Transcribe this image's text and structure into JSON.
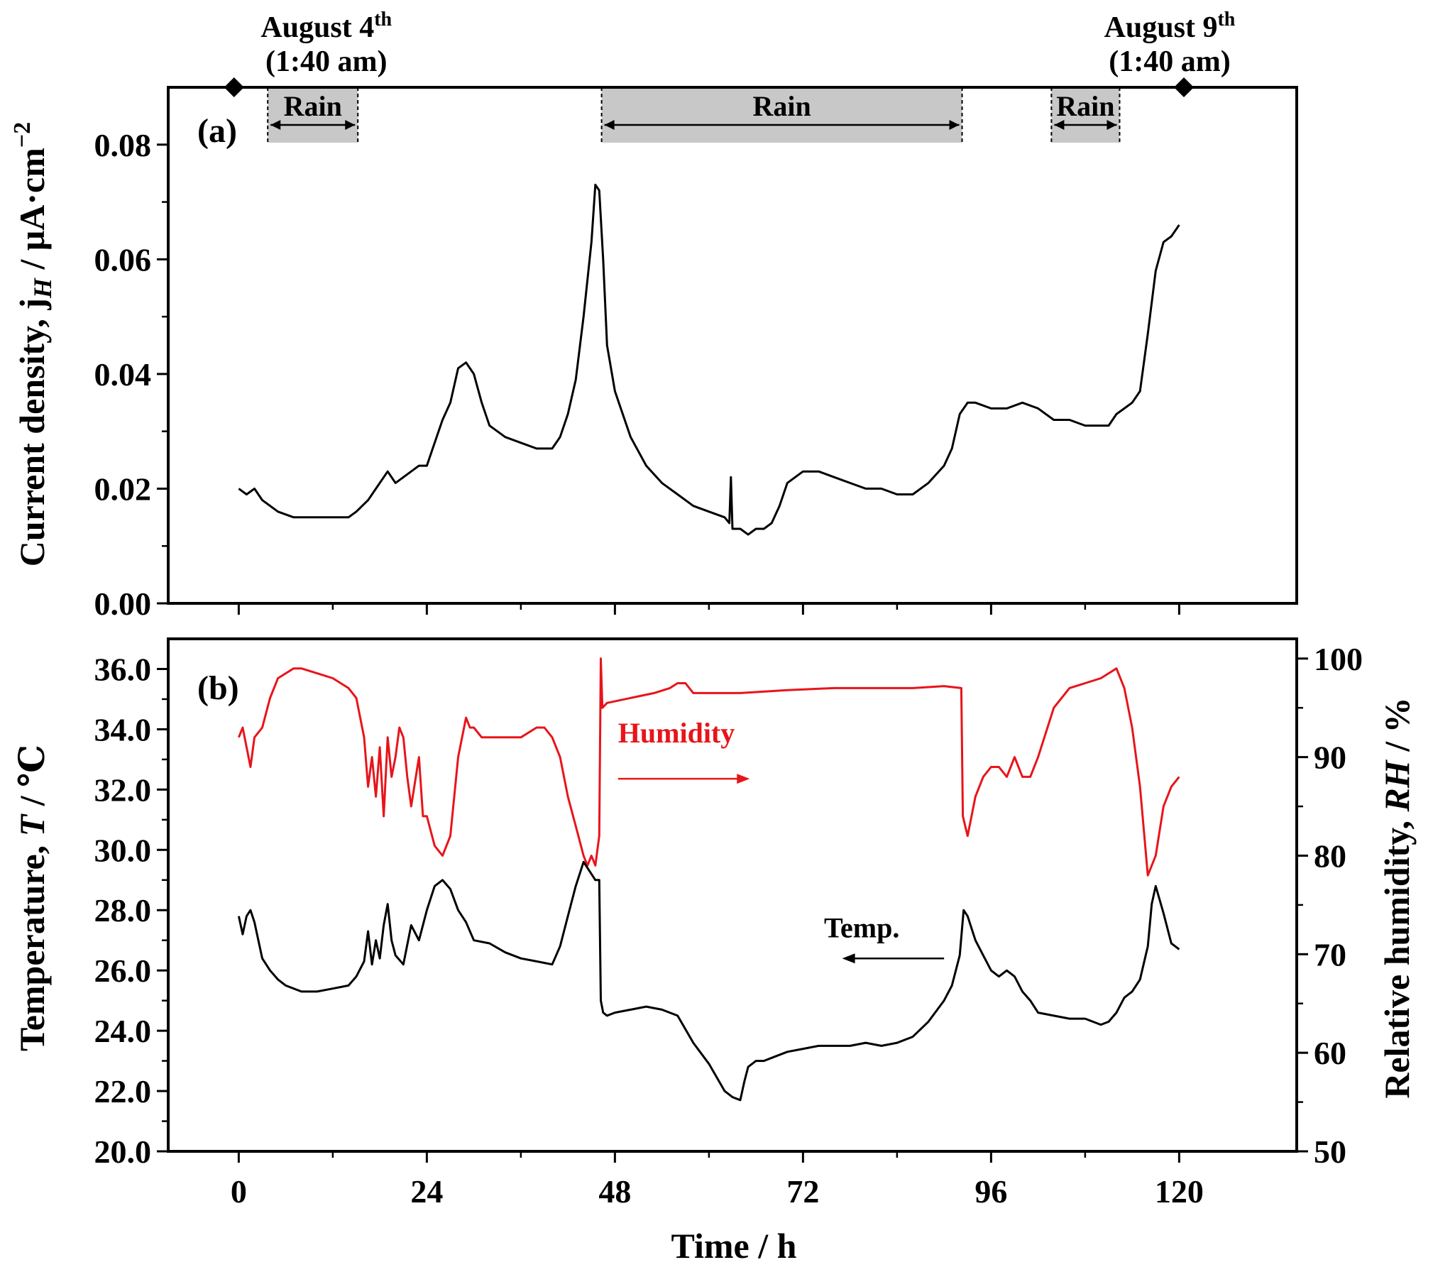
{
  "chart_data": [
    {
      "panel": "(a)",
      "type": "line",
      "ylabel": "Current density, j",
      "ylabel_sub": "H",
      "ylabel_unit": " / μA·cm",
      "ylabel_sup": "−2",
      "xlim": [
        -9,
        135
      ],
      "ylim": [
        0,
        0.09
      ],
      "yticks": [
        0,
        0.02,
        0.04,
        0.06,
        0.08
      ],
      "ytick_labels": [
        "0.00",
        "0.02",
        "0.04",
        "0.06",
        "0.08"
      ],
      "top_markers": [
        {
          "x": -0.6,
          "label_main": "August 4",
          "label_sup": "th",
          "label_time": "(1:40 am)"
        },
        {
          "x": 120.6,
          "label_main": "August 9",
          "label_sup": "th",
          "label_time": "(1:40 am)"
        }
      ],
      "rain_periods": [
        {
          "start": 3.7,
          "end": 15.2,
          "label": "Rain"
        },
        {
          "start": 46.3,
          "end": 92.3,
          "label": "Rain"
        },
        {
          "start": 103.7,
          "end": 112.4,
          "label": "Rain"
        }
      ],
      "series": [
        {
          "name": "Current density",
          "color": "#000000",
          "x": [
            0,
            1,
            2,
            3,
            5,
            7,
            9,
            12,
            14,
            15,
            16.5,
            18,
            19,
            20,
            21,
            23,
            24,
            25,
            26,
            27,
            28,
            29,
            30,
            31,
            32,
            34,
            36,
            38,
            40,
            41,
            42,
            43,
            44,
            45,
            45.5,
            46,
            46.5,
            47,
            48,
            49,
            50,
            52,
            54,
            56,
            58,
            60,
            62,
            62.6,
            62.8,
            63,
            64,
            65,
            66,
            67,
            68,
            69,
            70,
            71,
            72,
            74,
            76,
            78,
            80,
            82,
            84,
            86,
            88,
            90,
            91,
            92,
            93,
            94,
            96,
            98,
            100,
            102,
            104,
            106,
            108,
            110,
            111,
            112,
            113,
            114,
            115,
            116,
            117,
            118,
            119,
            120
          ],
          "y": [
            0.02,
            0.019,
            0.02,
            0.018,
            0.016,
            0.015,
            0.015,
            0.015,
            0.015,
            0.016,
            0.018,
            0.021,
            0.023,
            0.021,
            0.022,
            0.024,
            0.024,
            0.028,
            0.032,
            0.035,
            0.041,
            0.042,
            0.04,
            0.035,
            0.031,
            0.029,
            0.028,
            0.027,
            0.027,
            0.029,
            0.033,
            0.039,
            0.05,
            0.063,
            0.073,
            0.072,
            0.06,
            0.045,
            0.037,
            0.033,
            0.029,
            0.024,
            0.021,
            0.019,
            0.017,
            0.016,
            0.015,
            0.014,
            0.022,
            0.013,
            0.013,
            0.012,
            0.013,
            0.013,
            0.014,
            0.017,
            0.021,
            0.022,
            0.023,
            0.023,
            0.022,
            0.021,
            0.02,
            0.02,
            0.019,
            0.019,
            0.021,
            0.024,
            0.027,
            0.033,
            0.035,
            0.035,
            0.034,
            0.034,
            0.035,
            0.034,
            0.032,
            0.032,
            0.031,
            0.031,
            0.031,
            0.033,
            0.034,
            0.035,
            0.037,
            0.047,
            0.058,
            0.063,
            0.064,
            0.066
          ]
        }
      ]
    },
    {
      "panel": "(b)",
      "type": "line",
      "xlabel": "Time / h",
      "xlim": [
        -9,
        135
      ],
      "xticks": [
        0,
        24,
        48,
        72,
        96,
        120
      ],
      "xtick_labels": [
        "0",
        "24",
        "48",
        "72",
        "96",
        "120"
      ],
      "ylabel_left": "Temperature, ",
      "ylabel_left_var": "T",
      "ylabel_left_unit": " / ℃",
      "ylim_left": [
        20,
        37
      ],
      "yticks_left": [
        20,
        22,
        24,
        26,
        28,
        30,
        32,
        34,
        36
      ],
      "ytick_labels_left": [
        "20.0",
        "22.0",
        "24.0",
        "26.0",
        "28.0",
        "30.0",
        "32.0",
        "34.0",
        "36.0"
      ],
      "ylabel_right": "Relative humidity, ",
      "ylabel_right_var": "RH",
      "ylabel_right_unit": " / %",
      "ylim_right": [
        50,
        102
      ],
      "yticks_right": [
        50,
        60,
        70,
        80,
        90,
        100
      ],
      "ytick_labels_right": [
        "50",
        "60",
        "70",
        "80",
        "90",
        "100"
      ],
      "annotations": [
        {
          "text": "Humidity",
          "color": "#e8141a",
          "x": 48.4,
          "y_right": 91.5,
          "arrow_from": 48.4,
          "arrow_to": 65.2,
          "arrow_y_right": 87.8
        },
        {
          "text": "Temp.",
          "color": "#000000",
          "x": 79.5,
          "y_left": 27.1,
          "arrow_from": 90,
          "arrow_to": 77,
          "arrow_y_left": 26.4
        }
      ],
      "series": [
        {
          "name": "Humidity",
          "axis": "right",
          "color": "#e8141a",
          "x": [
            0,
            0.5,
            1,
            1.5,
            2,
            3,
            4,
            5,
            6,
            7,
            8,
            10,
            12,
            14,
            15,
            16,
            16.5,
            17,
            17.5,
            18,
            18.5,
            19,
            19.5,
            20,
            20.5,
            21,
            21.5,
            22,
            23,
            23.5,
            24,
            25,
            26,
            27,
            28,
            29,
            29.5,
            30,
            31,
            32,
            34,
            36,
            38,
            39,
            40,
            41,
            42,
            43,
            44,
            44.5,
            45,
            45.5,
            46,
            46.2,
            46.4,
            47,
            50,
            53,
            55,
            56,
            57,
            58,
            60,
            64,
            70,
            76,
            80,
            86,
            90,
            92.2,
            92.4,
            93,
            94,
            95,
            96,
            97,
            98,
            99,
            100,
            101,
            102,
            104,
            106,
            108,
            110,
            111,
            112,
            113,
            114,
            115,
            116,
            117,
            118,
            119,
            120
          ],
          "y": [
            92,
            93,
            91,
            89,
            92,
            93,
            96,
            98,
            98.5,
            99,
            99,
            98.5,
            98,
            97,
            96,
            92,
            87,
            90,
            86,
            91,
            84,
            92,
            88,
            90,
            93,
            92,
            88,
            85,
            90,
            84,
            84,
            81,
            80,
            82,
            90,
            94,
            93,
            93,
            92,
            92,
            92,
            92,
            93,
            93,
            92,
            90,
            86,
            83,
            80,
            79,
            80,
            79,
            82,
            100,
            95,
            95.5,
            96,
            96.5,
            97,
            97.5,
            97.5,
            96.5,
            96.5,
            96.5,
            96.8,
            97,
            97,
            97,
            97.2,
            97,
            84,
            82,
            86,
            88,
            89,
            89,
            88,
            90,
            88,
            88,
            90,
            95,
            97,
            97.5,
            98,
            98.5,
            99,
            97,
            93,
            87,
            78,
            80,
            85,
            87,
            88
          ]
        },
        {
          "name": "Temperature",
          "axis": "left",
          "color": "#000000",
          "x": [
            0,
            0.5,
            1,
            1.5,
            2,
            3,
            4,
            5,
            6,
            8,
            10,
            12,
            14,
            15,
            16,
            16.5,
            17,
            17.5,
            18,
            18.5,
            19,
            19.5,
            20,
            21,
            22,
            23,
            24,
            25,
            26,
            27,
            28,
            29,
            30,
            32,
            34,
            36,
            38,
            40,
            41,
            42,
            43,
            44,
            45,
            45.5,
            46,
            46.2,
            46.5,
            47,
            48,
            50,
            52,
            54,
            56,
            58,
            60,
            62,
            63,
            64,
            64.5,
            65,
            66,
            67,
            68,
            70,
            72,
            74,
            76,
            78,
            80,
            82,
            84,
            86,
            88,
            90,
            91,
            92,
            92.5,
            93,
            94,
            95,
            96,
            97,
            98,
            99,
            100,
            101,
            102,
            104,
            106,
            108,
            110,
            111,
            112,
            113,
            114,
            115,
            116,
            116.5,
            117,
            118,
            119,
            120
          ],
          "y": [
            27.8,
            27.2,
            27.8,
            28.0,
            27.6,
            26.4,
            26.0,
            25.7,
            25.5,
            25.3,
            25.3,
            25.4,
            25.5,
            25.8,
            26.3,
            27.3,
            26.2,
            27.0,
            26.4,
            27.5,
            28.2,
            27.0,
            26.5,
            26.2,
            27.5,
            27.0,
            28.0,
            28.8,
            29.0,
            28.7,
            28.0,
            27.6,
            27.0,
            26.9,
            26.6,
            26.4,
            26.3,
            26.2,
            26.8,
            27.8,
            28.8,
            29.6,
            29.2,
            29.0,
            29.0,
            25.0,
            24.6,
            24.5,
            24.6,
            24.7,
            24.8,
            24.7,
            24.5,
            23.6,
            22.9,
            22.0,
            21.8,
            21.7,
            22.3,
            22.8,
            23.0,
            23.0,
            23.1,
            23.3,
            23.4,
            23.5,
            23.5,
            23.5,
            23.6,
            23.5,
            23.6,
            23.8,
            24.3,
            25.0,
            25.5,
            26.5,
            28.0,
            27.8,
            27.0,
            26.5,
            26.0,
            25.8,
            26.0,
            25.8,
            25.3,
            25.0,
            24.6,
            24.5,
            24.4,
            24.4,
            24.2,
            24.3,
            24.6,
            25.1,
            25.3,
            25.7,
            26.8,
            28.2,
            28.8,
            27.9,
            26.9,
            26.7
          ]
        }
      ]
    }
  ]
}
